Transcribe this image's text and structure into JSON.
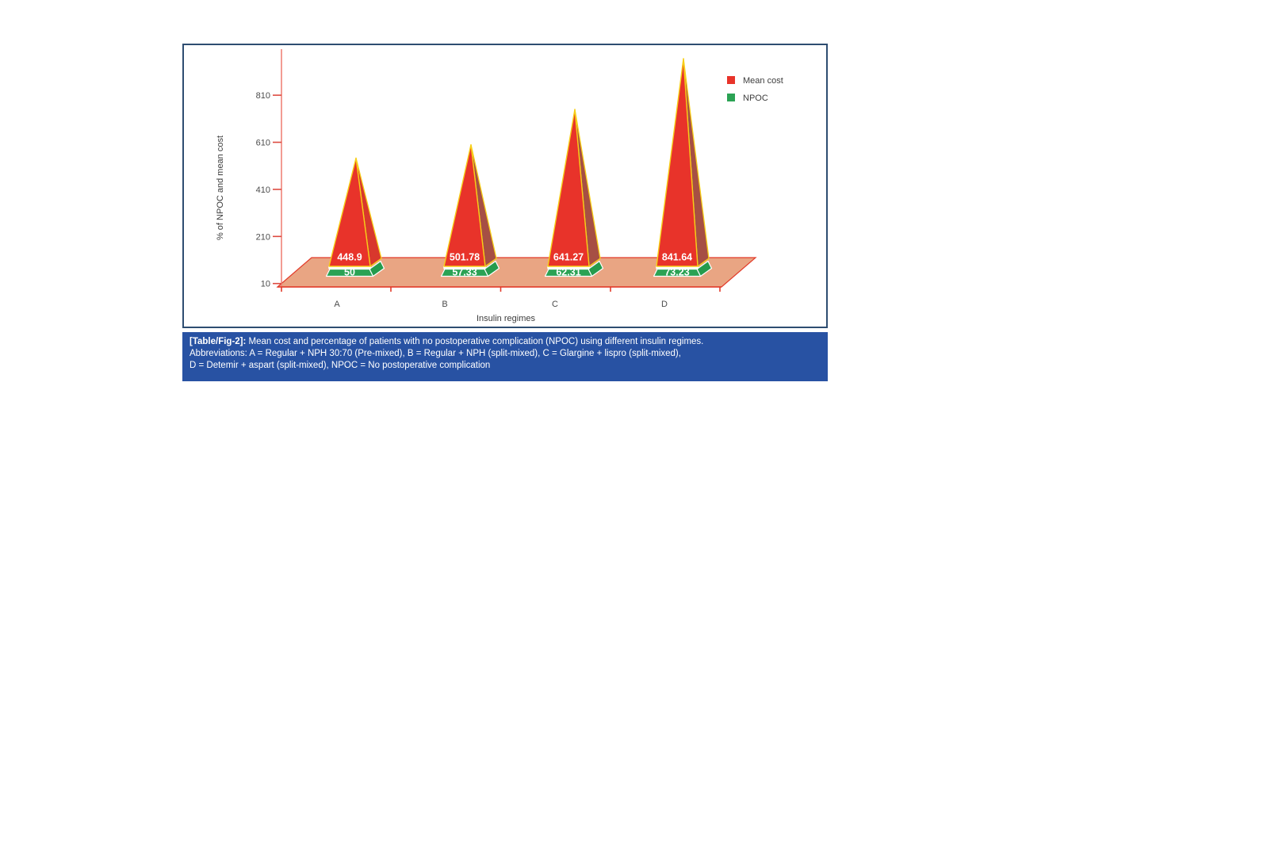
{
  "figure": {
    "caption": {
      "tag": "[Table/Fig-2]:",
      "line1": "Mean cost and percentage of patients with no postoperative complication (NPOC) using different insulin regimes.",
      "line2": "Abbreviations: A = Regular + NPH 30:70 (Pre-mixed), B = Regular + NPH (split-mixed), C = Glargine + lispro (split-mixed),",
      "line3": "D = Detemir + aspart (split-mixed), NPOC = No postoperative complication"
    }
  },
  "chart_data": {
    "type": "bar",
    "variant": "3d-pyramid",
    "categories": [
      "A",
      "B",
      "C",
      "D"
    ],
    "series": [
      {
        "name": "Mean cost",
        "values": [
          448.9,
          501.78,
          641.27,
          841.64
        ],
        "labels": [
          "448.9",
          "501.78",
          "641.27",
          "841.64"
        ],
        "color": "#e8332a"
      },
      {
        "name": "NPOC",
        "values": [
          50,
          57.33,
          62.31,
          73.23
        ],
        "labels": [
          "50",
          "57.33",
          "62.31",
          "73.23"
        ],
        "color": "#2ba254"
      }
    ],
    "title": "",
    "xlabel": "Insulin regimes",
    "ylabel": "% of NPOC and mean cost",
    "yticks": [
      810,
      610,
      410,
      210,
      10
    ],
    "ylim": [
      10,
      1010
    ],
    "legend": [
      {
        "label": "Mean cost",
        "color": "#e8332a"
      },
      {
        "label": "NPOC",
        "color": "#2ba254"
      }
    ],
    "legend_position": "top-right",
    "grid": false,
    "colors": {
      "pyramid_front_red": "#e8332a",
      "pyramid_side_red_first": "#d8382d",
      "pyramid_side_red": "#a64f44",
      "pyramid_edge_yellow": "#f7cf17",
      "pedestal_front_green": "#2ba254",
      "pedestal_side_green": "#259b4d",
      "floor_fill": "#e9a583",
      "floor_stroke": "#e23b2a",
      "y_axis_line": "#ef8378",
      "tick_red": "#dd4b41",
      "x_axis_line": "#e23b2a",
      "caption_bg": "#2852a3",
      "panel_border": "#2e4d71",
      "label_text": "#ffffff"
    }
  }
}
